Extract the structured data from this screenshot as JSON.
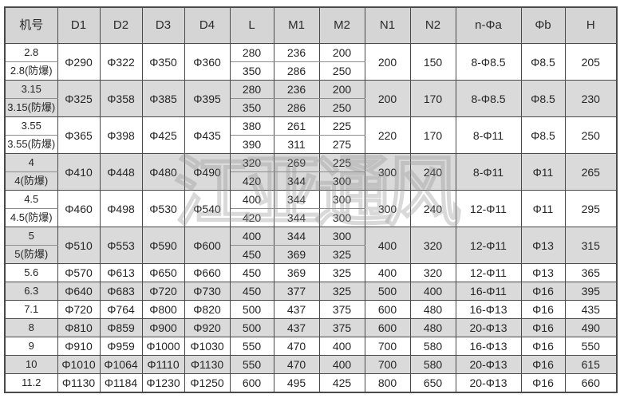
{
  "watermark": {
    "text": "江亚通风"
  },
  "table": {
    "columns": [
      "机号",
      "D1",
      "D2",
      "D3",
      "D4",
      "L",
      "M1",
      "M2",
      "N1",
      "N2",
      "n-Φa",
      "Φb",
      "H"
    ],
    "column_keys": [
      "model",
      "d1",
      "d2",
      "d3",
      "d4",
      "l",
      "m1",
      "m2",
      "n1",
      "n2",
      "na",
      "fb",
      "h"
    ],
    "colors": {
      "header_bg": "#d5d5d5",
      "shaded_row_bg": "#dadada",
      "row_bg": "#ffffff",
      "border": "#4a4a4a"
    },
    "rows": [
      {
        "model": "2.8",
        "model2": "2.8(防爆)",
        "d1": "Φ290",
        "d2": "Φ322",
        "d3": "Φ350",
        "d4": "Φ360",
        "l": [
          "280",
          "350"
        ],
        "m1": [
          "236",
          "286"
        ],
        "m2": [
          "200",
          "250"
        ],
        "n1": "200",
        "n2": "150",
        "na": "8-Φ8.5",
        "fb": "Φ8.5",
        "h": "205",
        "shaded": false
      },
      {
        "model": "3.15",
        "model2": "3.15(防爆)",
        "d1": "Φ325",
        "d2": "Φ358",
        "d3": "Φ385",
        "d4": "Φ395",
        "l": [
          "280",
          "350"
        ],
        "m1": [
          "236",
          "286"
        ],
        "m2": [
          "200",
          "250"
        ],
        "n1": "200",
        "n2": "170",
        "na": "8-Φ8.5",
        "fb": "Φ8.5",
        "h": "230",
        "shaded": true
      },
      {
        "model": "3.55",
        "model2": "3.55(防爆)",
        "d1": "Φ365",
        "d2": "Φ398",
        "d3": "Φ425",
        "d4": "Φ435",
        "l": [
          "380",
          "390"
        ],
        "m1": [
          "261",
          "311"
        ],
        "m2": [
          "225",
          "275"
        ],
        "n1": "220",
        "n2": "170",
        "na": "8-Φ11",
        "fb": "Φ8.5",
        "h": "250",
        "shaded": false
      },
      {
        "model": "4",
        "model2": "4(防爆)",
        "d1": "Φ410",
        "d2": "Φ448",
        "d3": "Φ480",
        "d4": "Φ490",
        "l": [
          "320",
          "420"
        ],
        "m1": [
          "269",
          "344"
        ],
        "m2": [
          "225",
          "300"
        ],
        "n1": "300",
        "n2": "240",
        "na": "8-Φ11",
        "fb": "Φ11",
        "h": "265",
        "shaded": true
      },
      {
        "model": "4.5",
        "model2": "4.5(防爆)",
        "d1": "Φ460",
        "d2": "Φ498",
        "d3": "Φ530",
        "d4": "Φ540",
        "l": [
          "400",
          "420"
        ],
        "m1": [
          "344",
          "344"
        ],
        "m2": [
          "300",
          "300"
        ],
        "n1": "300",
        "n2": "240",
        "na": "12-Φ11",
        "fb": "Φ11",
        "h": "295",
        "shaded": false
      },
      {
        "model": "5",
        "model2": "5(防爆)",
        "d1": "Φ510",
        "d2": "Φ553",
        "d3": "Φ590",
        "d4": "Φ600",
        "l": [
          "400",
          "450"
        ],
        "m1": [
          "344",
          "369"
        ],
        "m2": [
          "300",
          "325"
        ],
        "n1": "400",
        "n2": "320",
        "na": "12-Φ11",
        "fb": "Φ13",
        "h": "315",
        "shaded": true
      },
      {
        "model": "5.6",
        "d1": "Φ570",
        "d2": "Φ613",
        "d3": "Φ650",
        "d4": "Φ660",
        "l": [
          "450"
        ],
        "m1": [
          "369"
        ],
        "m2": [
          "325"
        ],
        "n1": "400",
        "n2": "320",
        "na": "12-Φ11",
        "fb": "Φ13",
        "h": "365",
        "shaded": false
      },
      {
        "model": "6.3",
        "d1": "Φ640",
        "d2": "Φ683",
        "d3": "Φ720",
        "d4": "Φ730",
        "l": [
          "450"
        ],
        "m1": [
          "377"
        ],
        "m2": [
          "325"
        ],
        "n1": "500",
        "n2": "400",
        "na": "16-Φ11",
        "fb": "Φ16",
        "h": "395",
        "shaded": true
      },
      {
        "model": "7.1",
        "d1": "Φ720",
        "d2": "Φ764",
        "d3": "Φ800",
        "d4": "Φ820",
        "l": [
          "500"
        ],
        "m1": [
          "437"
        ],
        "m2": [
          "375"
        ],
        "n1": "600",
        "n2": "480",
        "na": "16-Φ13",
        "fb": "Φ16",
        "h": "435",
        "shaded": false
      },
      {
        "model": "8",
        "d1": "Φ810",
        "d2": "Φ859",
        "d3": "Φ900",
        "d4": "Φ920",
        "l": [
          "500"
        ],
        "m1": [
          "437"
        ],
        "m2": [
          "375"
        ],
        "n1": "600",
        "n2": "480",
        "na": "20-Φ13",
        "fb": "Φ16",
        "h": "490",
        "shaded": true
      },
      {
        "model": "9",
        "d1": "Φ910",
        "d2": "Φ959",
        "d3": "Φ1000",
        "d4": "Φ1030",
        "l": [
          "550"
        ],
        "m1": [
          "470"
        ],
        "m2": [
          "400"
        ],
        "n1": "700",
        "n2": "580",
        "na": "16-Φ13",
        "fb": "Φ16",
        "h": "550",
        "shaded": false
      },
      {
        "model": "10",
        "d1": "Φ1010",
        "d2": "Φ1064",
        "d3": "Φ1110",
        "d4": "Φ1130",
        "l": [
          "550"
        ],
        "m1": [
          "470"
        ],
        "m2": [
          "400"
        ],
        "n1": "700",
        "n2": "580",
        "na": "20-Φ13",
        "fb": "Φ16",
        "h": "615",
        "shaded": true
      },
      {
        "model": "11.2",
        "d1": "Φ1130",
        "d2": "Φ1184",
        "d3": "Φ1230",
        "d4": "Φ1250",
        "l": [
          "600"
        ],
        "m1": [
          "495"
        ],
        "m2": [
          "425"
        ],
        "n1": "800",
        "n2": "650",
        "na": "20-Φ13",
        "fb": "Φ16",
        "h": "660",
        "shaded": false
      }
    ]
  }
}
